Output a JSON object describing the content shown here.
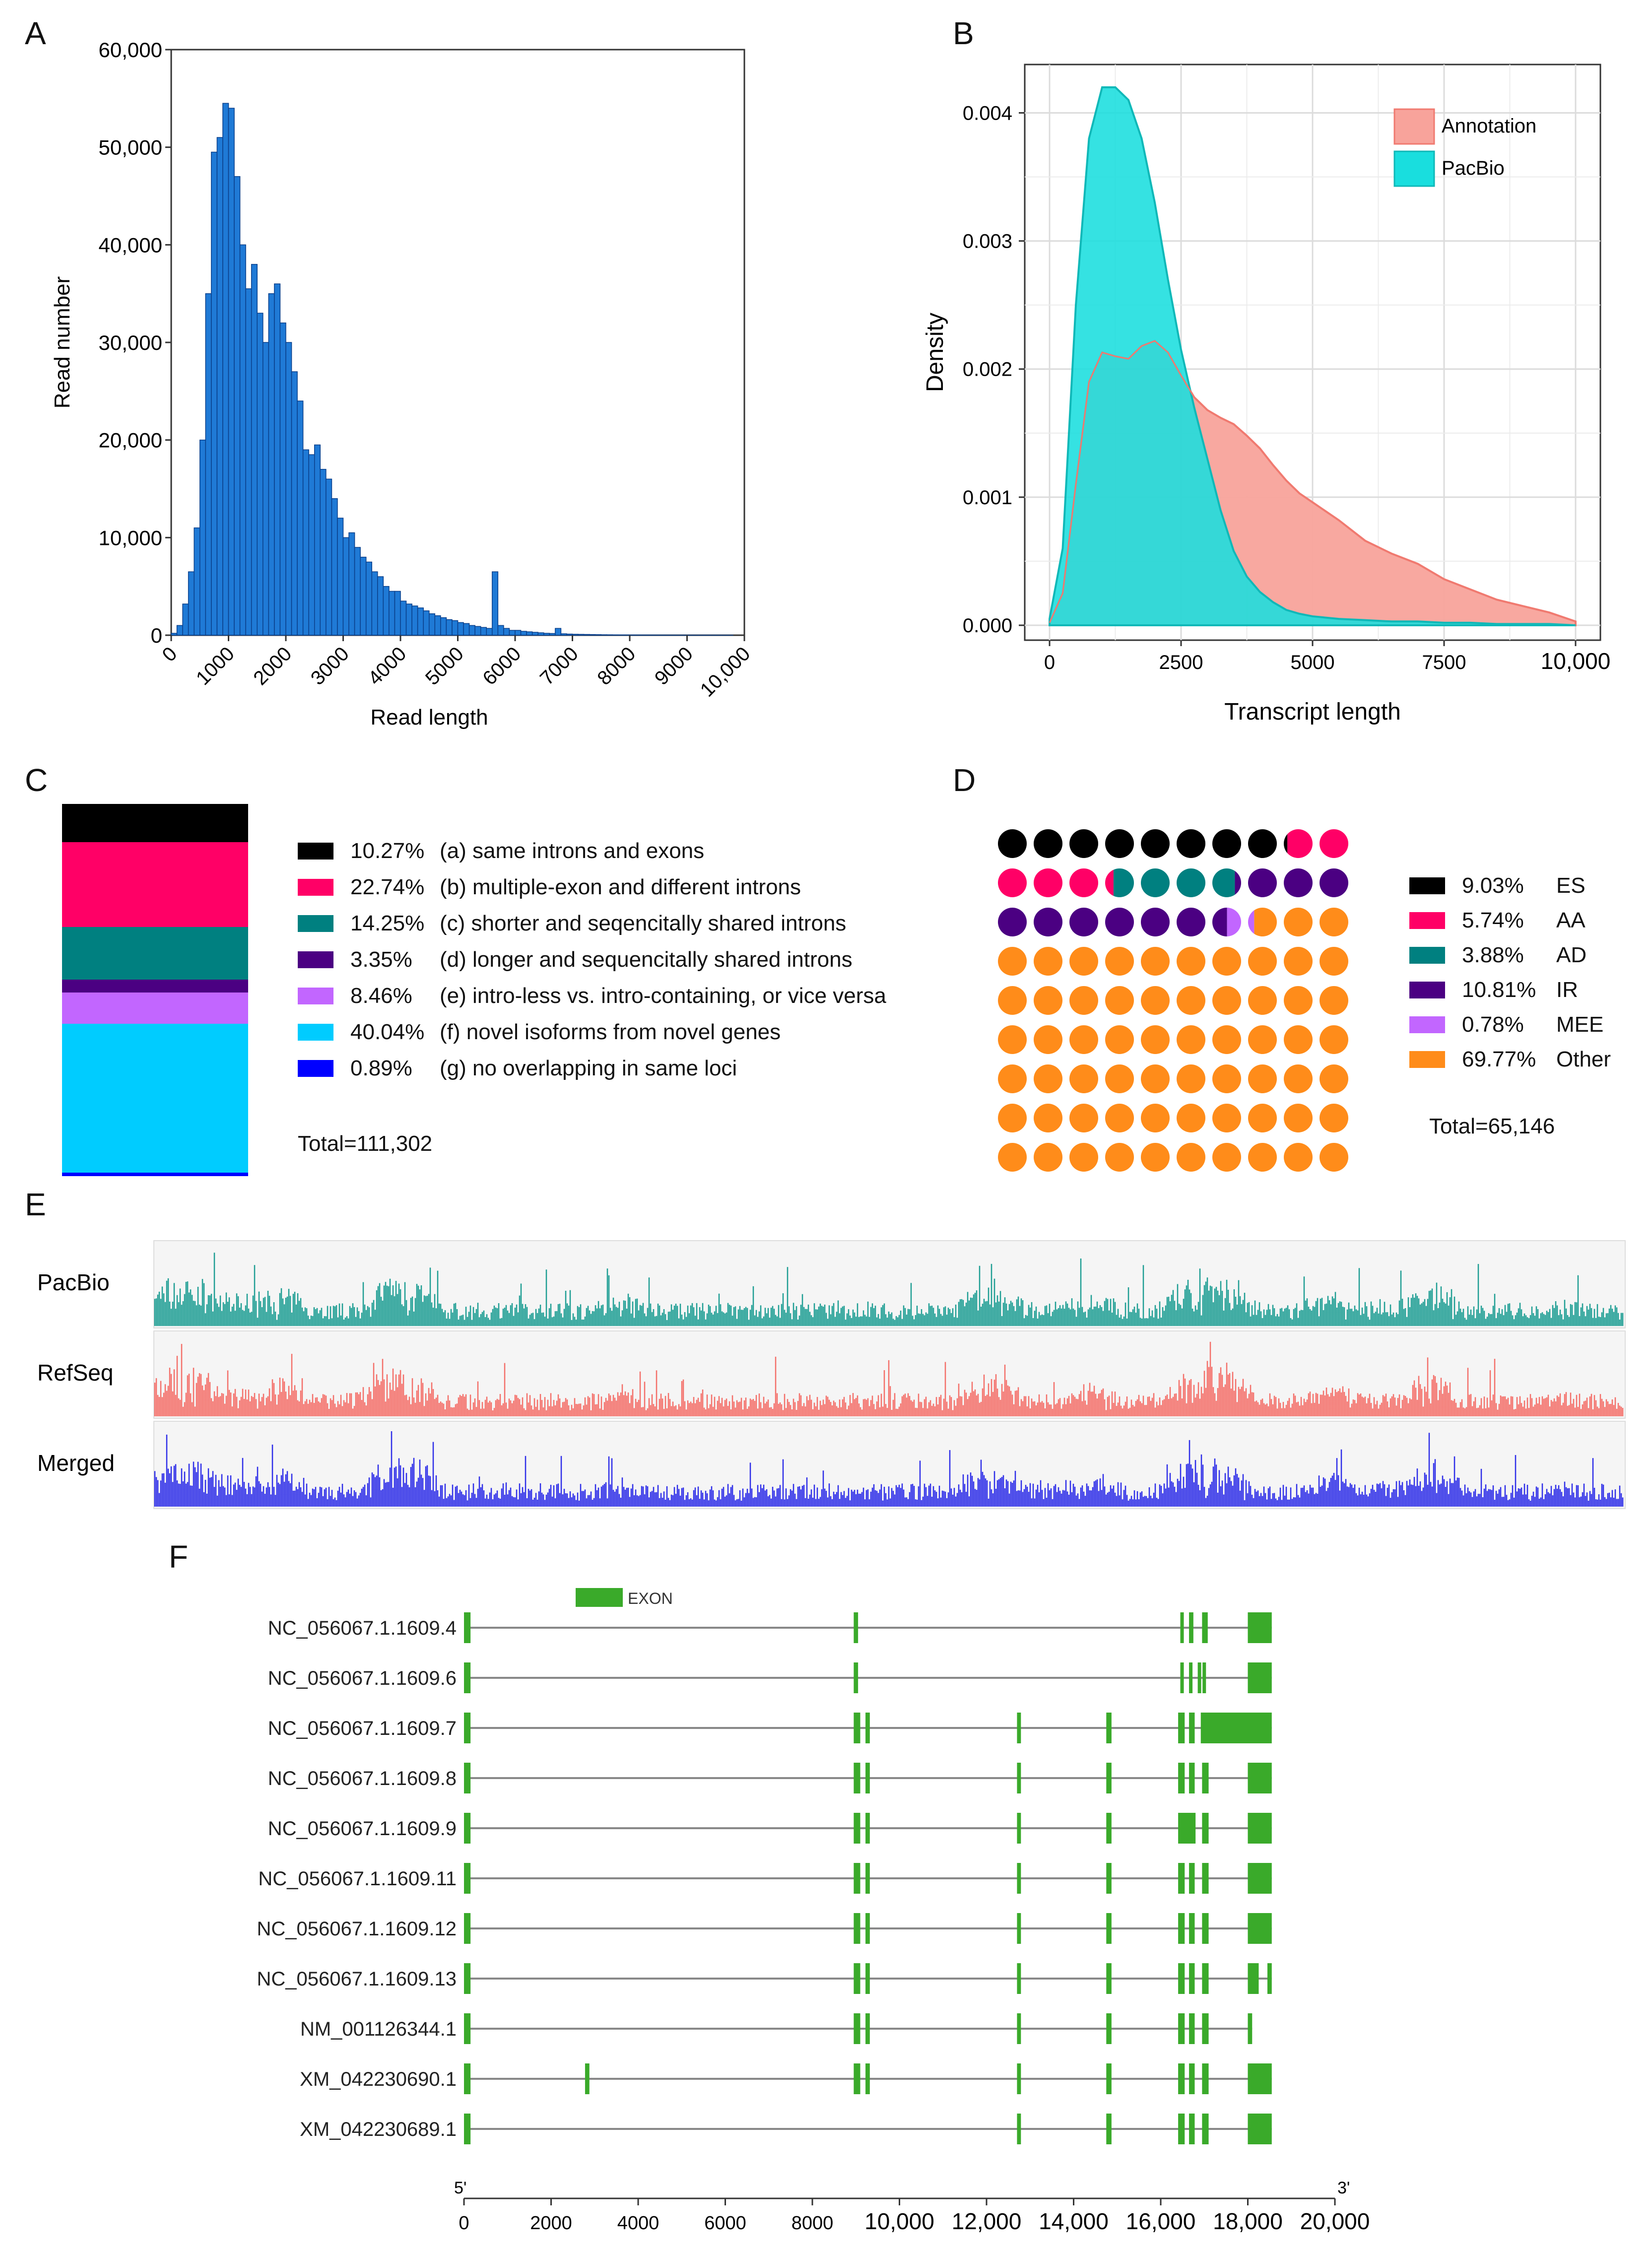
{
  "panels": {
    "A": "A",
    "B": "B",
    "C": "C",
    "D": "D",
    "E": "E",
    "F": "F"
  },
  "chart_data": [
    {
      "id": "A",
      "type": "bar",
      "title": "",
      "xlabel": "Read length",
      "ylabel": "Read number",
      "xlim": [
        0,
        10000
      ],
      "ylim": [
        0,
        60000
      ],
      "x_tick_labels": [
        "0",
        "1000",
        "2000",
        "3000",
        "4000",
        "5000",
        "6000",
        "7000",
        "8000",
        "9000",
        "10,000"
      ],
      "y_tick_labels": [
        "0",
        "10,000",
        "20,000",
        "30,000",
        "40,000",
        "50,000",
        "60,000"
      ],
      "bin_width": 100,
      "values": [
        200,
        1000,
        3200,
        6500,
        11000,
        20000,
        35000,
        49500,
        51000,
        54500,
        54000,
        47000,
        40000,
        35500,
        38000,
        33000,
        30000,
        35000,
        36000,
        32000,
        30000,
        27000,
        24000,
        19000,
        18500,
        19500,
        17000,
        16000,
        14000,
        12000,
        10000,
        10500,
        9000,
        8000,
        7500,
        6500,
        6000,
        5000,
        4500,
        4500,
        3500,
        3200,
        3000,
        2800,
        2500,
        2200,
        2000,
        1800,
        1600,
        1500,
        1300,
        1200,
        1000,
        900,
        800,
        700,
        6500,
        1000,
        700,
        500,
        500,
        400,
        350,
        300,
        250,
        200,
        180,
        700,
        150,
        120,
        100,
        90,
        80,
        70,
        60,
        50,
        45,
        40,
        35,
        30,
        28,
        25,
        22,
        20,
        18,
        15,
        12,
        10,
        8,
        6,
        5,
        4,
        3,
        3,
        2,
        2,
        1,
        1,
        0,
        0
      ]
    },
    {
      "id": "B",
      "type": "area",
      "title": "",
      "xlabel": "Transcript length",
      "ylabel": "Density",
      "xlim": [
        0,
        10000
      ],
      "ylim": [
        0,
        0.0043
      ],
      "x_tick_labels": [
        "0",
        "2500",
        "5000",
        "7500",
        "10,000"
      ],
      "y_tick_labels": [
        "0.000",
        "0.001",
        "0.002",
        "0.003",
        "0.004"
      ],
      "legend": {
        "position": "top-right",
        "entries": [
          "Annotation",
          "PacBio"
        ]
      },
      "x": [
        0,
        250,
        500,
        750,
        1000,
        1250,
        1500,
        1750,
        2000,
        2250,
        2500,
        2750,
        3000,
        3250,
        3500,
        3750,
        4000,
        4250,
        4500,
        4750,
        5000,
        5500,
        6000,
        6500,
        7000,
        7500,
        8000,
        8500,
        9000,
        9500,
        10000
      ],
      "series": [
        {
          "name": "Annotation",
          "color": "#f8a39b",
          "values": [
            2e-05,
            0.00025,
            0.0011,
            0.0019,
            0.00213,
            0.0021,
            0.00208,
            0.00218,
            0.00222,
            0.00213,
            0.00195,
            0.00178,
            0.00168,
            0.00162,
            0.00157,
            0.00148,
            0.00138,
            0.00125,
            0.00113,
            0.00103,
            0.00096,
            0.00082,
            0.00066,
            0.00056,
            0.00048,
            0.00036,
            0.00028,
            0.0002,
            0.00015,
            0.0001,
            3e-05
          ]
        },
        {
          "name": "PacBio",
          "color": "#19dede",
          "values": [
            5e-05,
            0.0006,
            0.0025,
            0.0038,
            0.0042,
            0.0042,
            0.0041,
            0.0038,
            0.0033,
            0.0027,
            0.00215,
            0.0017,
            0.0013,
            0.0009,
            0.00058,
            0.00038,
            0.00026,
            0.00018,
            0.00012,
            9e-05,
            7e-05,
            5e-05,
            4e-05,
            3e-05,
            3e-05,
            2e-05,
            2e-05,
            1e-05,
            1e-05,
            1e-05,
            0.0
          ]
        }
      ]
    },
    {
      "id": "C",
      "type": "bar",
      "subtype": "stacked-100",
      "total": "Total=111,302",
      "categories": [
        {
          "pct": "10.27%",
          "label": "(a) same introns and exons",
          "value": 10.27,
          "color": "#000000"
        },
        {
          "pct": "22.74%",
          "label": "(b) multiple-exon and different introns",
          "value": 22.74,
          "color": "#ff0066"
        },
        {
          "pct": "14.25%",
          "label": "(c) shorter and seqencitally shared introns",
          "value": 14.25,
          "color": "#008080"
        },
        {
          "pct": "3.35%",
          "label": "(d) longer and sequencitally shared introns",
          "value": 3.35,
          "color": "#4b0082"
        },
        {
          "pct": "8.46%",
          "label": "(e) intro-less vs. intro-containing, or vice versa",
          "value": 8.46,
          "color": "#c266ff"
        },
        {
          "pct": "40.04%",
          "label": "(f) novel isoforms from novel genes",
          "value": 40.04,
          "color": "#00ccff"
        },
        {
          "pct": "0.89%",
          "label": "(g) no overlapping in same loci",
          "value": 0.89,
          "color": "#0000ff"
        }
      ]
    },
    {
      "id": "D",
      "type": "other",
      "subtype": "waffle",
      "grid": {
        "cols": 10,
        "rows": 9
      },
      "total": "Total=65,146",
      "categories": [
        {
          "pct": "9.03%",
          "label": "ES",
          "value": 9.03,
          "color": "#000000"
        },
        {
          "pct": "5.74%",
          "label": "AA",
          "value": 5.74,
          "color": "#ff0066"
        },
        {
          "pct": "3.88%",
          "label": "AD",
          "value": 3.88,
          "color": "#008080"
        },
        {
          "pct": "10.81%",
          "label": "IR",
          "value": 10.81,
          "color": "#4b0082"
        },
        {
          "pct": "0.78%",
          "label": "MEE",
          "value": 0.78,
          "color": "#c266ff"
        },
        {
          "pct": "69.77%",
          "label": "Other",
          "value": 69.77,
          "color": "#ff8c1a"
        }
      ]
    },
    {
      "id": "E",
      "type": "bar",
      "subtype": "coverage-tracks",
      "tracks": [
        {
          "name": "PacBio",
          "color": "#1f9e94"
        },
        {
          "name": "RefSeq",
          "color": "#f4706a"
        },
        {
          "name": "Merged",
          "color": "#2f2fe8"
        }
      ]
    },
    {
      "id": "F",
      "type": "other",
      "subtype": "gene-structure",
      "legend_label": "EXON",
      "xlim": [
        0,
        20000
      ],
      "x_tick_labels": [
        "0",
        "2000",
        "4000",
        "6000",
        "8000",
        "10,000",
        "12,000",
        "14,000",
        "16,000",
        "18,000",
        "20,000"
      ],
      "end_labels": {
        "left": "5'",
        "right": "3'"
      },
      "transcripts": [
        {
          "name": "NC_056067.1.1609.4",
          "exons": [
            [
              0,
              150
            ],
            [
              8950,
              9050
            ],
            [
              16450,
              16530
            ],
            [
              16650,
              16750
            ],
            [
              16950,
              17080
            ],
            [
              18000,
              18550
            ]
          ]
        },
        {
          "name": "NC_056067.1.1609.6",
          "exons": [
            [
              0,
              150
            ],
            [
              8950,
              9050
            ],
            [
              16450,
              16530
            ],
            [
              16650,
              16730
            ],
            [
              16850,
              16890
            ],
            [
              16960,
              17000
            ],
            [
              18000,
              18550
            ]
          ]
        },
        {
          "name": "NC_056067.1.1609.7",
          "exons": [
            [
              0,
              150
            ],
            [
              8950,
              9100
            ],
            [
              9220,
              9320
            ],
            [
              12700,
              12790
            ],
            [
              14750,
              14870
            ],
            [
              16400,
              16550
            ],
            [
              16650,
              16780
            ],
            [
              16920,
              18550
            ]
          ]
        },
        {
          "name": "NC_056067.1.1609.8",
          "exons": [
            [
              0,
              150
            ],
            [
              8950,
              9100
            ],
            [
              9220,
              9320
            ],
            [
              12700,
              12790
            ],
            [
              14750,
              14870
            ],
            [
              16400,
              16550
            ],
            [
              16650,
              16780
            ],
            [
              16950,
              17100
            ],
            [
              18000,
              18550
            ]
          ]
        },
        {
          "name": "NC_056067.1.1609.9",
          "exons": [
            [
              0,
              150
            ],
            [
              8950,
              9100
            ],
            [
              9220,
              9320
            ],
            [
              12700,
              12790
            ],
            [
              14750,
              14870
            ],
            [
              16400,
              16800
            ],
            [
              16950,
              17100
            ],
            [
              18000,
              18550
            ]
          ]
        },
        {
          "name": "NC_056067.1.1609.11",
          "exons": [
            [
              0,
              150
            ],
            [
              8950,
              9100
            ],
            [
              9220,
              9320
            ],
            [
              12700,
              12790
            ],
            [
              14750,
              14870
            ],
            [
              16400,
              16550
            ],
            [
              16650,
              16780
            ],
            [
              16950,
              17100
            ],
            [
              18000,
              18550
            ]
          ]
        },
        {
          "name": "NC_056067.1.1609.12",
          "exons": [
            [
              0,
              150
            ],
            [
              8950,
              9100
            ],
            [
              9220,
              9320
            ],
            [
              12700,
              12790
            ],
            [
              14750,
              14870
            ],
            [
              16400,
              16550
            ],
            [
              16650,
              16780
            ],
            [
              16950,
              17100
            ],
            [
              18000,
              18550
            ]
          ]
        },
        {
          "name": "NC_056067.1.1609.13",
          "exons": [
            [
              0,
              150
            ],
            [
              8950,
              9100
            ],
            [
              9220,
              9320
            ],
            [
              12700,
              12790
            ],
            [
              14750,
              14870
            ],
            [
              16400,
              16550
            ],
            [
              16650,
              16780
            ],
            [
              16950,
              17100
            ],
            [
              18000,
              18250
            ],
            [
              18450,
              18550
            ]
          ]
        },
        {
          "name": "NM_001126344.1",
          "exons": [
            [
              0,
              150
            ],
            [
              8950,
              9100
            ],
            [
              9220,
              9320
            ],
            [
              12700,
              12790
            ],
            [
              14750,
              14870
            ],
            [
              16400,
              16550
            ],
            [
              16650,
              16780
            ],
            [
              16950,
              17100
            ],
            [
              18000,
              18100
            ]
          ]
        },
        {
          "name": "XM_042230690.1",
          "exons": [
            [
              0,
              150
            ],
            [
              2780,
              2880
            ],
            [
              8950,
              9100
            ],
            [
              9220,
              9320
            ],
            [
              12700,
              12790
            ],
            [
              14750,
              14870
            ],
            [
              16400,
              16550
            ],
            [
              16650,
              16780
            ],
            [
              16950,
              17100
            ],
            [
              18000,
              18550
            ]
          ]
        },
        {
          "name": "XM_042230689.1",
          "exons": [
            [
              0,
              150
            ],
            [
              12700,
              12790
            ],
            [
              14750,
              14870
            ],
            [
              16400,
              16550
            ],
            [
              16650,
              16780
            ],
            [
              16950,
              17100
            ],
            [
              18000,
              18550
            ]
          ]
        }
      ]
    }
  ]
}
